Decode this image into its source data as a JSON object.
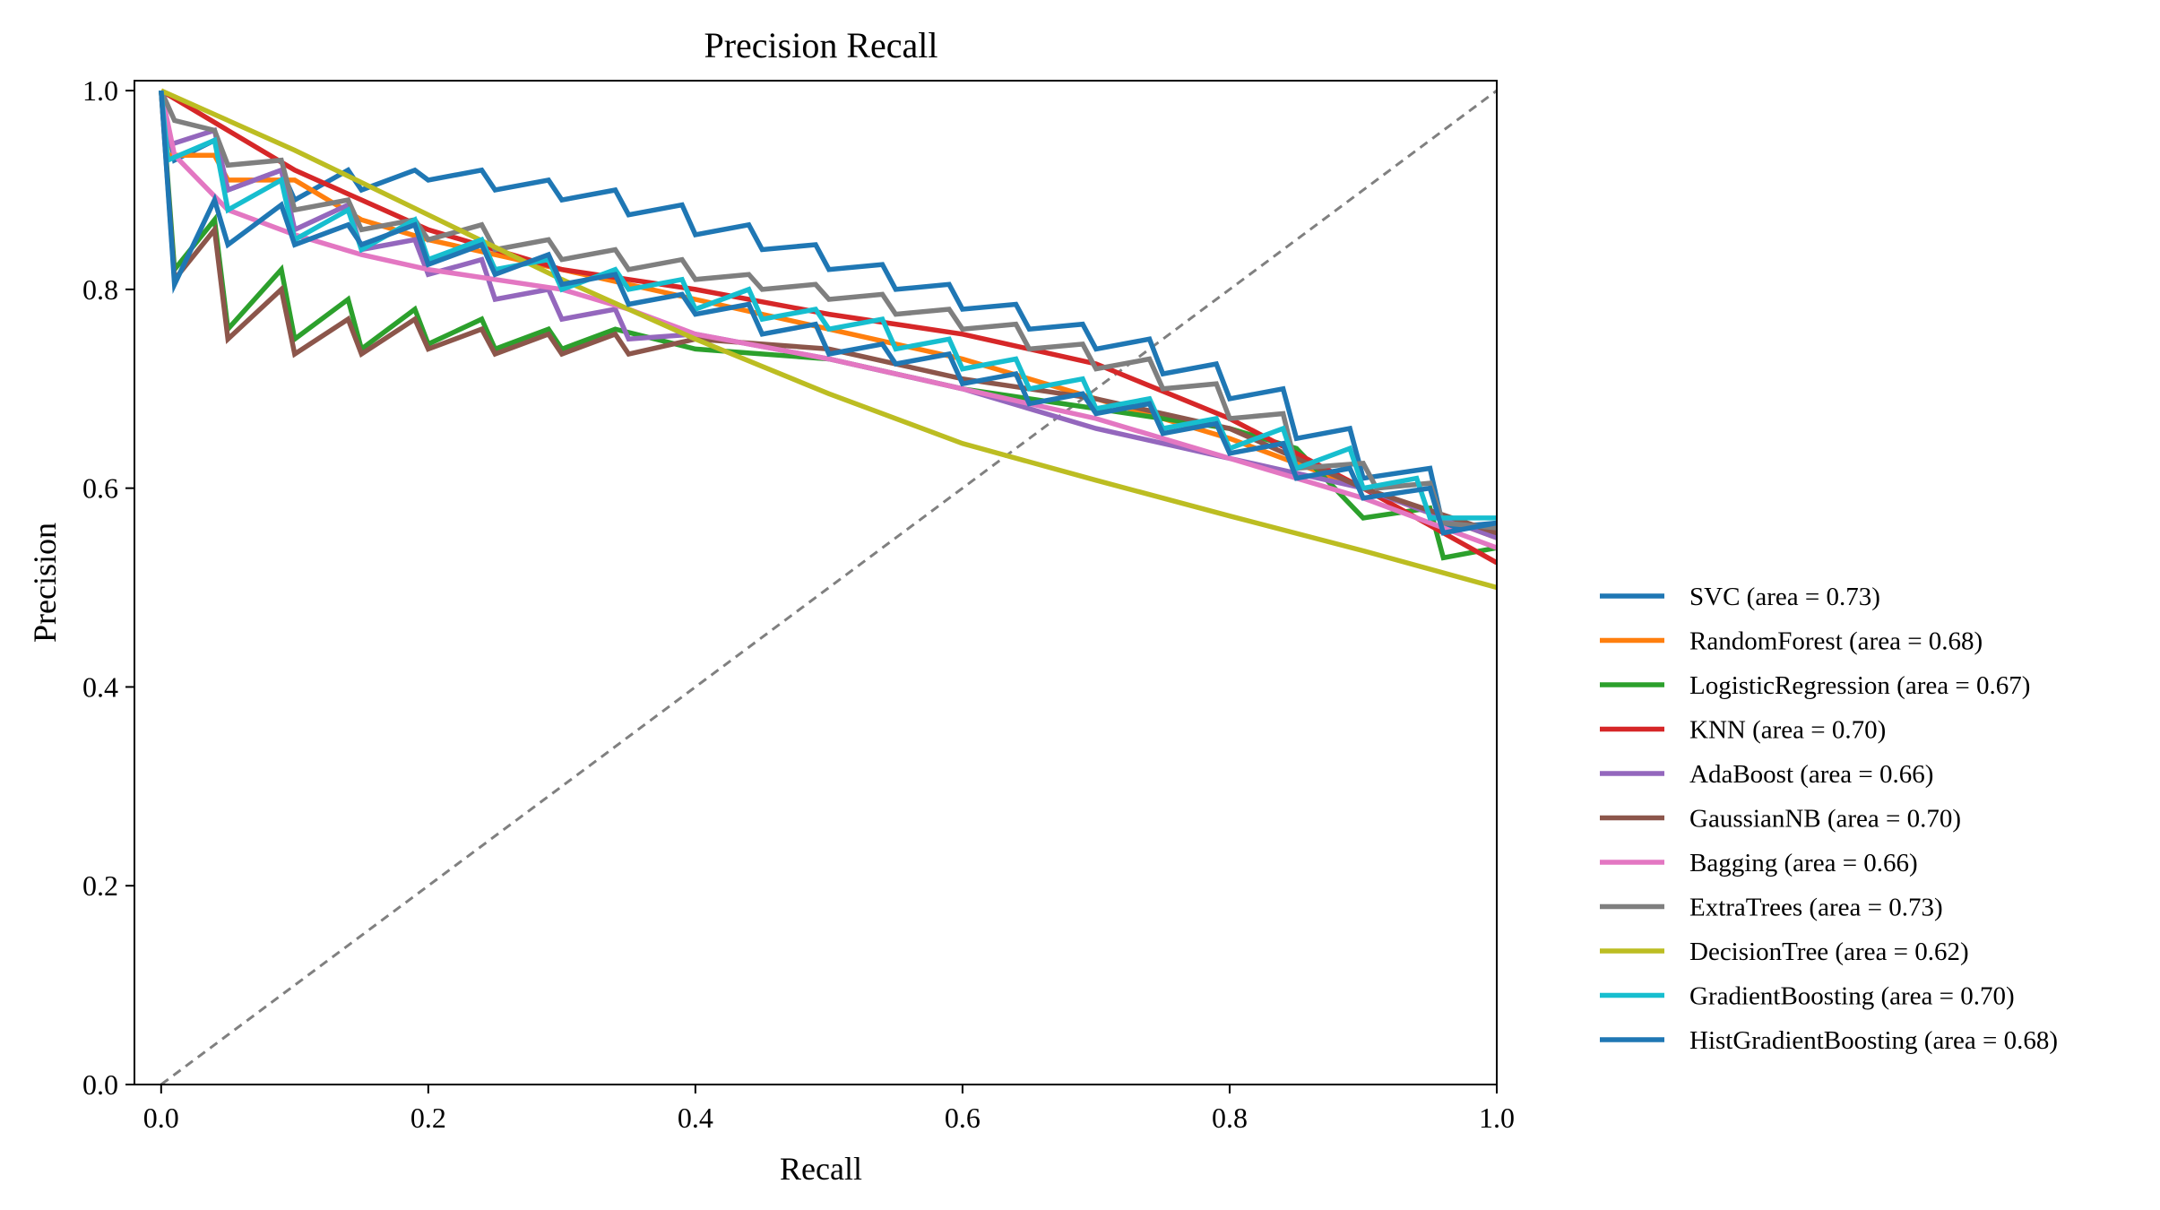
{
  "chart_data": {
    "type": "line",
    "title": "Precision Recall",
    "xlabel": "Recall",
    "ylabel": "Precision",
    "xlim": [
      -0.02,
      1.0
    ],
    "ylim": [
      0.0,
      1.01
    ],
    "x_ticks": [
      "0.0",
      "0.2",
      "0.4",
      "0.6",
      "0.8",
      "1.0"
    ],
    "y_ticks": [
      "0.0",
      "0.2",
      "0.4",
      "0.6",
      "0.8",
      "1.0"
    ],
    "x_tick_values": [
      0.0,
      0.2,
      0.4,
      0.6,
      0.8,
      1.0
    ],
    "y_tick_values": [
      0.0,
      0.2,
      0.4,
      0.6,
      0.8,
      1.0
    ],
    "grid": false,
    "legend_position": "outside right",
    "diagonal_reference": {
      "points": [
        [
          0,
          0
        ],
        [
          1,
          1
        ]
      ],
      "color": "#808080",
      "style": "dashed"
    },
    "series": [
      {
        "name": "SVC (area = 0.73)",
        "color": "#1f77b4",
        "points": [
          [
            0,
            1.0
          ],
          [
            0.01,
            0.93
          ],
          [
            0.04,
            0.95
          ],
          [
            0.05,
            0.9
          ],
          [
            0.09,
            0.92
          ],
          [
            0.1,
            0.89
          ],
          [
            0.14,
            0.92
          ],
          [
            0.15,
            0.9
          ],
          [
            0.19,
            0.92
          ],
          [
            0.2,
            0.91
          ],
          [
            0.24,
            0.92
          ],
          [
            0.25,
            0.9
          ],
          [
            0.29,
            0.91
          ],
          [
            0.3,
            0.89
          ],
          [
            0.34,
            0.9
          ],
          [
            0.35,
            0.875
          ],
          [
            0.39,
            0.885
          ],
          [
            0.4,
            0.855
          ],
          [
            0.44,
            0.865
          ],
          [
            0.45,
            0.84
          ],
          [
            0.49,
            0.845
          ],
          [
            0.5,
            0.82
          ],
          [
            0.54,
            0.825
          ],
          [
            0.55,
            0.8
          ],
          [
            0.59,
            0.805
          ],
          [
            0.6,
            0.78
          ],
          [
            0.64,
            0.785
          ],
          [
            0.65,
            0.76
          ],
          [
            0.69,
            0.765
          ],
          [
            0.7,
            0.74
          ],
          [
            0.74,
            0.75
          ],
          [
            0.75,
            0.715
          ],
          [
            0.79,
            0.725
          ],
          [
            0.8,
            0.69
          ],
          [
            0.84,
            0.7
          ],
          [
            0.85,
            0.65
          ],
          [
            0.89,
            0.66
          ],
          [
            0.9,
            0.61
          ],
          [
            0.95,
            0.62
          ],
          [
            0.96,
            0.56
          ],
          [
            1.0,
            0.565
          ]
        ]
      },
      {
        "name": "RandomForest (area = 0.68)",
        "color": "#ff7f0e",
        "points": [
          [
            0,
            1.0
          ],
          [
            0.005,
            0.935
          ],
          [
            0.04,
            0.935
          ],
          [
            0.05,
            0.91
          ],
          [
            0.1,
            0.91
          ],
          [
            0.15,
            0.87
          ],
          [
            0.2,
            0.85
          ],
          [
            0.3,
            0.82
          ],
          [
            0.4,
            0.79
          ],
          [
            0.5,
            0.76
          ],
          [
            0.6,
            0.73
          ],
          [
            0.7,
            0.69
          ],
          [
            0.8,
            0.65
          ],
          [
            0.9,
            0.6
          ],
          [
            1.0,
            0.55
          ]
        ]
      },
      {
        "name": "LogisticRegression (area = 0.67)",
        "color": "#2ca02c",
        "points": [
          [
            0,
            1.0
          ],
          [
            0.01,
            0.82
          ],
          [
            0.04,
            0.87
          ],
          [
            0.05,
            0.76
          ],
          [
            0.09,
            0.82
          ],
          [
            0.1,
            0.75
          ],
          [
            0.14,
            0.79
          ],
          [
            0.15,
            0.74
          ],
          [
            0.19,
            0.78
          ],
          [
            0.2,
            0.745
          ],
          [
            0.24,
            0.77
          ],
          [
            0.25,
            0.74
          ],
          [
            0.29,
            0.76
          ],
          [
            0.3,
            0.74
          ],
          [
            0.34,
            0.76
          ],
          [
            0.4,
            0.74
          ],
          [
            0.5,
            0.73
          ],
          [
            0.6,
            0.7
          ],
          [
            0.7,
            0.68
          ],
          [
            0.8,
            0.66
          ],
          [
            0.85,
            0.64
          ],
          [
            0.9,
            0.57
          ],
          [
            0.95,
            0.58
          ],
          [
            0.96,
            0.53
          ],
          [
            1.0,
            0.54
          ]
        ]
      },
      {
        "name": "KNN (area = 0.70)",
        "color": "#d62728",
        "points": [
          [
            0,
            1.0
          ],
          [
            0.1,
            0.92
          ],
          [
            0.2,
            0.86
          ],
          [
            0.3,
            0.82
          ],
          [
            0.4,
            0.8
          ],
          [
            0.5,
            0.775
          ],
          [
            0.6,
            0.755
          ],
          [
            0.7,
            0.725
          ],
          [
            0.8,
            0.67
          ],
          [
            0.9,
            0.6
          ],
          [
            1.0,
            0.525
          ]
        ]
      },
      {
        "name": "AdaBoost (area = 0.66)",
        "color": "#9467bd",
        "points": [
          [
            0,
            1.0
          ],
          [
            0.005,
            0.945
          ],
          [
            0.04,
            0.96
          ],
          [
            0.05,
            0.9
          ],
          [
            0.09,
            0.92
          ],
          [
            0.1,
            0.86
          ],
          [
            0.14,
            0.885
          ],
          [
            0.15,
            0.84
          ],
          [
            0.19,
            0.85
          ],
          [
            0.2,
            0.815
          ],
          [
            0.24,
            0.83
          ],
          [
            0.25,
            0.79
          ],
          [
            0.29,
            0.8
          ],
          [
            0.3,
            0.77
          ],
          [
            0.34,
            0.78
          ],
          [
            0.35,
            0.75
          ],
          [
            0.4,
            0.755
          ],
          [
            0.5,
            0.73
          ],
          [
            0.6,
            0.7
          ],
          [
            0.7,
            0.66
          ],
          [
            0.8,
            0.63
          ],
          [
            0.9,
            0.6
          ],
          [
            1.0,
            0.55
          ]
        ]
      },
      {
        "name": "GaussianNB (area = 0.70)",
        "color": "#8c564b",
        "points": [
          [
            0,
            1.0
          ],
          [
            0.01,
            0.81
          ],
          [
            0.04,
            0.86
          ],
          [
            0.05,
            0.75
          ],
          [
            0.09,
            0.8
          ],
          [
            0.1,
            0.735
          ],
          [
            0.14,
            0.77
          ],
          [
            0.15,
            0.735
          ],
          [
            0.19,
            0.77
          ],
          [
            0.2,
            0.74
          ],
          [
            0.24,
            0.76
          ],
          [
            0.25,
            0.735
          ],
          [
            0.29,
            0.755
          ],
          [
            0.3,
            0.735
          ],
          [
            0.34,
            0.755
          ],
          [
            0.35,
            0.735
          ],
          [
            0.4,
            0.75
          ],
          [
            0.5,
            0.74
          ],
          [
            0.6,
            0.71
          ],
          [
            0.7,
            0.69
          ],
          [
            0.8,
            0.66
          ],
          [
            0.9,
            0.6
          ],
          [
            1.0,
            0.555
          ]
        ]
      },
      {
        "name": "Bagging (area = 0.66)",
        "color": "#e377c2",
        "points": [
          [
            0,
            1.0
          ],
          [
            0.01,
            0.935
          ],
          [
            0.05,
            0.88
          ],
          [
            0.1,
            0.855
          ],
          [
            0.15,
            0.835
          ],
          [
            0.2,
            0.82
          ],
          [
            0.25,
            0.81
          ],
          [
            0.3,
            0.8
          ],
          [
            0.35,
            0.78
          ],
          [
            0.4,
            0.755
          ],
          [
            0.5,
            0.73
          ],
          [
            0.6,
            0.7
          ],
          [
            0.7,
            0.67
          ],
          [
            0.8,
            0.63
          ],
          [
            0.9,
            0.59
          ],
          [
            1.0,
            0.54
          ]
        ]
      },
      {
        "name": "ExtraTrees (area = 0.73)",
        "color": "#7f7f7f",
        "points": [
          [
            0,
            1.0
          ],
          [
            0.01,
            0.97
          ],
          [
            0.04,
            0.96
          ],
          [
            0.05,
            0.925
          ],
          [
            0.09,
            0.93
          ],
          [
            0.1,
            0.88
          ],
          [
            0.14,
            0.89
          ],
          [
            0.15,
            0.86
          ],
          [
            0.19,
            0.87
          ],
          [
            0.2,
            0.85
          ],
          [
            0.24,
            0.865
          ],
          [
            0.25,
            0.84
          ],
          [
            0.29,
            0.85
          ],
          [
            0.3,
            0.83
          ],
          [
            0.34,
            0.84
          ],
          [
            0.35,
            0.82
          ],
          [
            0.39,
            0.83
          ],
          [
            0.4,
            0.81
          ],
          [
            0.44,
            0.815
          ],
          [
            0.45,
            0.8
          ],
          [
            0.49,
            0.805
          ],
          [
            0.5,
            0.79
          ],
          [
            0.54,
            0.795
          ],
          [
            0.55,
            0.775
          ],
          [
            0.59,
            0.78
          ],
          [
            0.6,
            0.76
          ],
          [
            0.64,
            0.765
          ],
          [
            0.65,
            0.74
          ],
          [
            0.69,
            0.745
          ],
          [
            0.7,
            0.72
          ],
          [
            0.74,
            0.73
          ],
          [
            0.75,
            0.7
          ],
          [
            0.79,
            0.705
          ],
          [
            0.8,
            0.67
          ],
          [
            0.84,
            0.675
          ],
          [
            0.85,
            0.62
          ],
          [
            0.9,
            0.625
          ],
          [
            0.91,
            0.6
          ],
          [
            0.95,
            0.605
          ],
          [
            0.96,
            0.565
          ],
          [
            1.0,
            0.56
          ]
        ]
      },
      {
        "name": "DecisionTree (area = 0.62)",
        "color": "#bcbd22",
        "points": [
          [
            0,
            1.0
          ],
          [
            0.1,
            0.94
          ],
          [
            0.2,
            0.875
          ],
          [
            0.3,
            0.81
          ],
          [
            0.4,
            0.75
          ],
          [
            0.5,
            0.695
          ],
          [
            0.6,
            0.645
          ],
          [
            0.7,
            0.608
          ],
          [
            0.8,
            0.572
          ],
          [
            0.9,
            0.537
          ],
          [
            1.0,
            0.5
          ]
        ]
      },
      {
        "name": "GradientBoosting (area = 0.70)",
        "color": "#17becf",
        "points": [
          [
            0,
            1.0
          ],
          [
            0.005,
            0.93
          ],
          [
            0.04,
            0.95
          ],
          [
            0.05,
            0.88
          ],
          [
            0.09,
            0.91
          ],
          [
            0.1,
            0.85
          ],
          [
            0.14,
            0.88
          ],
          [
            0.15,
            0.84
          ],
          [
            0.19,
            0.87
          ],
          [
            0.2,
            0.83
          ],
          [
            0.24,
            0.85
          ],
          [
            0.25,
            0.82
          ],
          [
            0.29,
            0.83
          ],
          [
            0.3,
            0.8
          ],
          [
            0.34,
            0.82
          ],
          [
            0.35,
            0.8
          ],
          [
            0.39,
            0.81
          ],
          [
            0.4,
            0.78
          ],
          [
            0.44,
            0.8
          ],
          [
            0.45,
            0.77
          ],
          [
            0.49,
            0.78
          ],
          [
            0.5,
            0.76
          ],
          [
            0.54,
            0.77
          ],
          [
            0.55,
            0.74
          ],
          [
            0.59,
            0.75
          ],
          [
            0.6,
            0.72
          ],
          [
            0.64,
            0.73
          ],
          [
            0.65,
            0.7
          ],
          [
            0.69,
            0.71
          ],
          [
            0.7,
            0.68
          ],
          [
            0.74,
            0.69
          ],
          [
            0.75,
            0.66
          ],
          [
            0.79,
            0.67
          ],
          [
            0.8,
            0.64
          ],
          [
            0.84,
            0.66
          ],
          [
            0.85,
            0.62
          ],
          [
            0.89,
            0.64
          ],
          [
            0.9,
            0.6
          ],
          [
            0.94,
            0.61
          ],
          [
            0.95,
            0.57
          ],
          [
            1.0,
            0.57
          ]
        ]
      },
      {
        "name": "HistGradientBoosting (area = 0.68)",
        "color": "#1f77b4",
        "points": [
          [
            0,
            1.0
          ],
          [
            0.01,
            0.805
          ],
          [
            0.04,
            0.89
          ],
          [
            0.05,
            0.845
          ],
          [
            0.09,
            0.885
          ],
          [
            0.1,
            0.845
          ],
          [
            0.14,
            0.865
          ],
          [
            0.15,
            0.845
          ],
          [
            0.19,
            0.865
          ],
          [
            0.2,
            0.825
          ],
          [
            0.24,
            0.845
          ],
          [
            0.25,
            0.815
          ],
          [
            0.29,
            0.835
          ],
          [
            0.3,
            0.805
          ],
          [
            0.34,
            0.815
          ],
          [
            0.35,
            0.785
          ],
          [
            0.39,
            0.795
          ],
          [
            0.4,
            0.775
          ],
          [
            0.44,
            0.785
          ],
          [
            0.45,
            0.755
          ],
          [
            0.49,
            0.765
          ],
          [
            0.5,
            0.735
          ],
          [
            0.54,
            0.745
          ],
          [
            0.55,
            0.725
          ],
          [
            0.59,
            0.735
          ],
          [
            0.6,
            0.705
          ],
          [
            0.64,
            0.715
          ],
          [
            0.65,
            0.685
          ],
          [
            0.69,
            0.695
          ],
          [
            0.7,
            0.675
          ],
          [
            0.74,
            0.685
          ],
          [
            0.75,
            0.655
          ],
          [
            0.79,
            0.665
          ],
          [
            0.8,
            0.635
          ],
          [
            0.84,
            0.645
          ],
          [
            0.85,
            0.61
          ],
          [
            0.89,
            0.62
          ],
          [
            0.9,
            0.59
          ],
          [
            0.95,
            0.6
          ],
          [
            0.96,
            0.555
          ],
          [
            1.0,
            0.565
          ]
        ]
      }
    ]
  }
}
